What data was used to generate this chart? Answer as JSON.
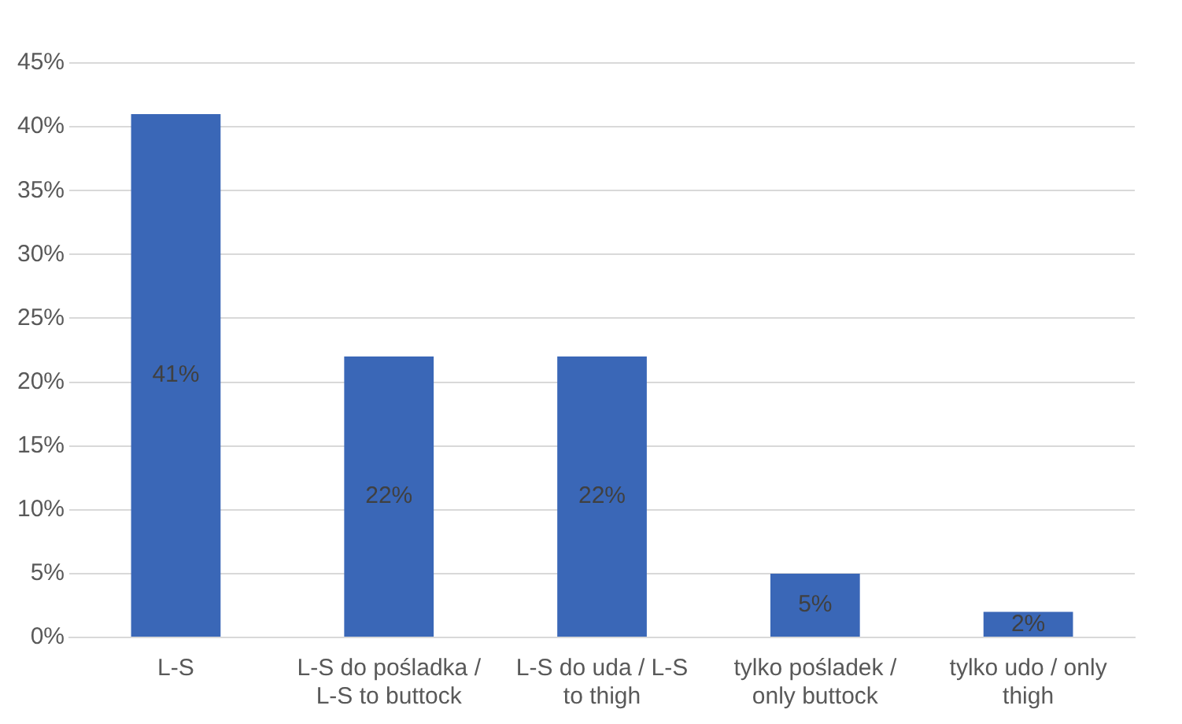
{
  "chart_data": {
    "type": "bar",
    "categories": [
      "L-S",
      "L-S do pośladka / L-S to buttock",
      "L-S do uda / L-S to thigh",
      "tylko pośladek / only buttock",
      "tylko udo / only thigh"
    ],
    "values": [
      41,
      22,
      22,
      5,
      2
    ],
    "value_labels": [
      "41%",
      "22%",
      "22%",
      "5%",
      "2%"
    ],
    "color": "#3a67b7",
    "ylim": [
      0,
      45
    ],
    "yticks": [
      {
        "value": 0,
        "label": "0%"
      },
      {
        "value": 5,
        "label": "5%"
      },
      {
        "value": 10,
        "label": "10%"
      },
      {
        "value": 15,
        "label": "15%"
      },
      {
        "value": 20,
        "label": "20%"
      },
      {
        "value": 25,
        "label": "25%"
      },
      {
        "value": 30,
        "label": "30%"
      },
      {
        "value": 35,
        "label": "35%"
      },
      {
        "value": 40,
        "label": "40%"
      },
      {
        "value": 45,
        "label": "45%"
      }
    ],
    "grid": "y",
    "legend": false
  }
}
